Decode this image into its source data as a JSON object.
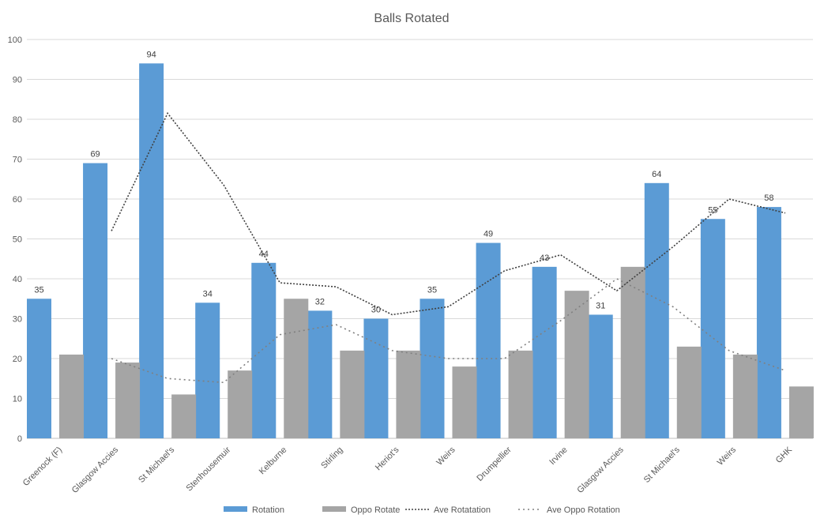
{
  "chart_data": {
    "type": "bar",
    "title": "Balls Rotated",
    "xlabel": "",
    "ylabel": "",
    "ylim": [
      0,
      100
    ],
    "yticks": [
      0,
      10,
      20,
      30,
      40,
      50,
      60,
      70,
      80,
      90,
      100
    ],
    "grid": true,
    "legend_position": "bottom",
    "categories": [
      "Greenock (F)",
      "Glasgow Accies",
      "St Michael's",
      "Stenhousemuir",
      "Kelburne",
      "Stirling",
      "Heriot's",
      "Weirs",
      "Drumpellier",
      "Irvine",
      "Glasgow Accies",
      "St Michael's",
      "Weirs",
      "GHK"
    ],
    "series": [
      {
        "name": "Rotation",
        "kind": "bar",
        "color": "#5b9bd5",
        "values": [
          35,
          69,
          94,
          34,
          44,
          32,
          30,
          35,
          49,
          43,
          31,
          64,
          55,
          58
        ],
        "show_labels": true
      },
      {
        "name": "Oppo Rotate",
        "kind": "bar",
        "color": "#a5a5a5",
        "values": [
          21,
          19,
          11,
          17,
          35,
          22,
          22,
          18,
          22,
          37,
          43,
          23,
          21,
          13
        ],
        "show_labels": false
      },
      {
        "name": "Ave Rotatation",
        "kind": "line",
        "color": "#404040",
        "dash": "dense",
        "values": [
          null,
          52,
          81.5,
          63.5,
          39,
          38,
          31,
          33,
          42,
          46,
          37,
          48,
          60,
          56.5
        ]
      },
      {
        "name": "Ave Oppo Rotation",
        "kind": "line",
        "color": "#808080",
        "dash": "sparse",
        "values": [
          null,
          20,
          15,
          14,
          26,
          28.5,
          22,
          20,
          20,
          29.5,
          40,
          33,
          22,
          17
        ]
      }
    ]
  }
}
